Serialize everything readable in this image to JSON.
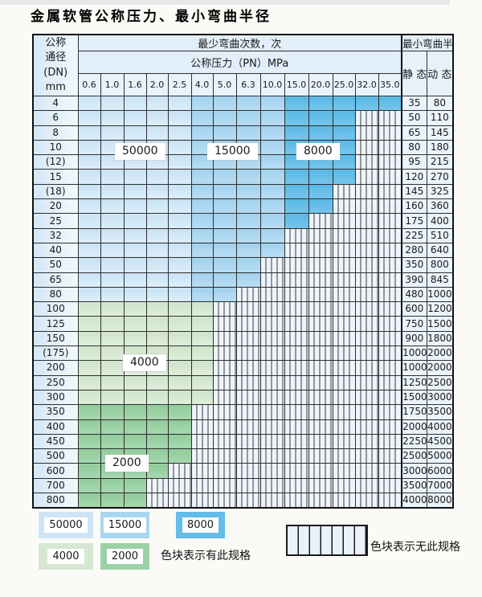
{
  "title": "金属软管公称压力、最小弯曲半径",
  "header": {
    "dn_lines": [
      "公称",
      "通径",
      "(DN)",
      "mm"
    ],
    "cycles_label": "最少弯曲次数，次",
    "pressure_label": "公称压力（PN）MPa",
    "radius_label": "最小弯曲半径",
    "static_label": "静 态",
    "dynamic_label": "动 态"
  },
  "pressure_columns": [
    "0.6",
    "1.0",
    "1.6",
    "2.0",
    "2.5",
    "4.0",
    "5.0",
    "6.3",
    "10.0",
    "15.0",
    "20.0",
    "25.0",
    "32.0",
    "35.0"
  ],
  "blue_zone_breaks": [
    5,
    9
  ],
  "rows": [
    {
      "dn": "4",
      "colored": 14,
      "group": "blue",
      "static": "35",
      "dynamic": "80"
    },
    {
      "dn": "6",
      "colored": 12,
      "group": "blue",
      "static": "50",
      "dynamic": "110"
    },
    {
      "dn": "8",
      "colored": 12,
      "group": "blue",
      "static": "65",
      "dynamic": "145"
    },
    {
      "dn": "10",
      "colored": 12,
      "group": "blue",
      "static": "80",
      "dynamic": "180"
    },
    {
      "dn": "(12)",
      "colored": 12,
      "group": "blue",
      "static": "95",
      "dynamic": "215"
    },
    {
      "dn": "15",
      "colored": 12,
      "group": "blue",
      "static": "120",
      "dynamic": "270"
    },
    {
      "dn": "(18)",
      "colored": 11,
      "group": "blue",
      "static": "145",
      "dynamic": "325"
    },
    {
      "dn": "20",
      "colored": 11,
      "group": "blue",
      "static": "160",
      "dynamic": "360"
    },
    {
      "dn": "25",
      "colored": 10,
      "group": "blue",
      "static": "175",
      "dynamic": "400"
    },
    {
      "dn": "32",
      "colored": 9,
      "group": "blue",
      "static": "225",
      "dynamic": "510"
    },
    {
      "dn": "40",
      "colored": 9,
      "group": "blue",
      "static": "280",
      "dynamic": "640"
    },
    {
      "dn": "50",
      "colored": 8,
      "group": "blue",
      "static": "350",
      "dynamic": "800"
    },
    {
      "dn": "65",
      "colored": 8,
      "group": "blue",
      "static": "390",
      "dynamic": "845"
    },
    {
      "dn": "80",
      "colored": 7,
      "group": "blue",
      "static": "480",
      "dynamic": "1000"
    },
    {
      "dn": "100",
      "colored": 6,
      "group": "g4",
      "static": "600",
      "dynamic": "1200"
    },
    {
      "dn": "125",
      "colored": 6,
      "group": "g4",
      "static": "750",
      "dynamic": "1500"
    },
    {
      "dn": "150",
      "colored": 6,
      "group": "g4",
      "static": "900",
      "dynamic": "1800"
    },
    {
      "dn": "(175)",
      "colored": 6,
      "group": "g4",
      "static": "1000",
      "dynamic": "2000"
    },
    {
      "dn": "200",
      "colored": 6,
      "group": "g4",
      "static": "1000",
      "dynamic": "2000"
    },
    {
      "dn": "250",
      "colored": 6,
      "group": "g4",
      "static": "1250",
      "dynamic": "2500"
    },
    {
      "dn": "300",
      "colored": 6,
      "group": "g4",
      "static": "1500",
      "dynamic": "3000"
    },
    {
      "dn": "350",
      "colored": 5,
      "group": "g2",
      "static": "1750",
      "dynamic": "3500"
    },
    {
      "dn": "400",
      "colored": 5,
      "group": "g2",
      "static": "2000",
      "dynamic": "4000"
    },
    {
      "dn": "450",
      "colored": 5,
      "group": "g2",
      "static": "2250",
      "dynamic": "4500"
    },
    {
      "dn": "500",
      "colored": 5,
      "group": "g2",
      "static": "2500",
      "dynamic": "5000"
    },
    {
      "dn": "600",
      "colored": 4,
      "group": "g2",
      "static": "3000",
      "dynamic": "6000"
    },
    {
      "dn": "700",
      "colored": 3,
      "group": "g2",
      "static": "3500",
      "dynamic": "7000"
    },
    {
      "dn": "800",
      "colored": 3,
      "group": "g2",
      "static": "4000",
      "dynamic": "8000"
    }
  ],
  "legend": {
    "items": [
      {
        "label": "50000",
        "color": "#cfe5f6"
      },
      {
        "label": "15000",
        "color": "#a9d6f0"
      },
      {
        "label": "8000",
        "color": "#63bde8"
      },
      {
        "label": "4000",
        "color": "#d6e8d1"
      },
      {
        "label": "2000",
        "color": "#9bd1a4"
      }
    ],
    "has_spec_note": "色块表示有此规格",
    "no_spec_note": "色块表示无此规格"
  },
  "colors": {
    "hatch_bg": "#edf4fb",
    "hatch_line": "#3a3a3a",
    "grid_line": "#2e2e2e",
    "header_bg": "#e2eef9",
    "page_bg": "#fafbf6"
  }
}
